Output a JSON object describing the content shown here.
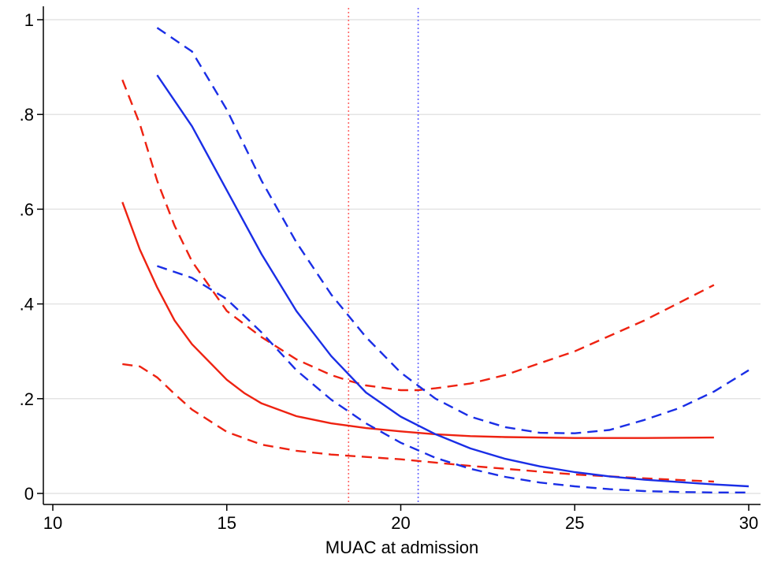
{
  "chart_data": {
    "type": "line",
    "title": "",
    "xlabel": "MUAC at admission",
    "ylabel": "",
    "xlim": [
      10,
      30
    ],
    "ylim": [
      0,
      1
    ],
    "grid": true,
    "legend": "none",
    "x_ticks": [
      {
        "value": 10,
        "label": "10"
      },
      {
        "value": 15,
        "label": "15"
      },
      {
        "value": 20,
        "label": "20"
      },
      {
        "value": 25,
        "label": "25"
      },
      {
        "value": 30,
        "label": "30"
      }
    ],
    "y_ticks": [
      {
        "value": 0,
        "label": "0"
      },
      {
        "value": 0.2,
        "label": ".2"
      },
      {
        "value": 0.4,
        "label": ".4"
      },
      {
        "value": 0.6,
        "label": ".6"
      },
      {
        "value": 0.8,
        "label": ".8"
      },
      {
        "value": 1,
        "label": "1"
      }
    ],
    "reference_lines": [
      {
        "x": 18.5,
        "color": "#ff6666",
        "style": "dotted"
      },
      {
        "x": 20.5,
        "color": "#6666ff",
        "style": "dotted"
      }
    ],
    "series": [
      {
        "color": "#ee2211",
        "style": "solid",
        "x": [
          12,
          12.5,
          13,
          13.5,
          14,
          15,
          15.5,
          16,
          17,
          18,
          19,
          20,
          21,
          22,
          23,
          25,
          27,
          29
        ],
        "y": [
          0.615,
          0.515,
          0.435,
          0.365,
          0.315,
          0.24,
          0.212,
          0.19,
          0.163,
          0.148,
          0.138,
          0.131,
          0.125,
          0.121,
          0.119,
          0.117,
          0.117,
          0.118
        ]
      },
      {
        "color": "#ee2211",
        "style": "dashed",
        "x": [
          12,
          12.5,
          13,
          13.5,
          14,
          15,
          16,
          17,
          18,
          18.5,
          19,
          20,
          20.5,
          21,
          22,
          23,
          25,
          27,
          29
        ],
        "y": [
          0.873,
          0.78,
          0.66,
          0.565,
          0.49,
          0.385,
          0.33,
          0.283,
          0.25,
          0.238,
          0.228,
          0.218,
          0.218,
          0.222,
          0.232,
          0.25,
          0.3,
          0.365,
          0.44
        ]
      },
      {
        "color": "#ee2211",
        "style": "dashed",
        "x": [
          12,
          12.5,
          13,
          13.5,
          14,
          15,
          16,
          17,
          18,
          19,
          20,
          22,
          25,
          27,
          29
        ],
        "y": [
          0.273,
          0.268,
          0.245,
          0.21,
          0.177,
          0.13,
          0.103,
          0.09,
          0.082,
          0.077,
          0.072,
          0.058,
          0.04,
          0.032,
          0.025
        ]
      },
      {
        "color": "#1a2ee6",
        "style": "solid",
        "x": [
          13,
          14,
          15,
          16,
          17,
          18,
          19,
          20,
          21,
          22,
          23,
          24,
          25,
          26,
          27,
          28,
          29,
          30
        ],
        "y": [
          0.883,
          0.775,
          0.64,
          0.505,
          0.385,
          0.29,
          0.213,
          0.162,
          0.125,
          0.095,
          0.073,
          0.057,
          0.045,
          0.036,
          0.029,
          0.024,
          0.019,
          0.015
        ]
      },
      {
        "color": "#1a2ee6",
        "style": "dashed",
        "x": [
          13,
          14,
          15,
          16,
          17,
          18,
          19,
          20,
          21,
          22,
          23,
          24,
          25,
          26,
          27,
          28,
          29,
          30
        ],
        "y": [
          0.983,
          0.933,
          0.81,
          0.66,
          0.53,
          0.42,
          0.33,
          0.255,
          0.2,
          0.162,
          0.14,
          0.128,
          0.127,
          0.134,
          0.155,
          0.18,
          0.215,
          0.26
        ]
      },
      {
        "color": "#1a2ee6",
        "style": "dashed",
        "x": [
          13,
          14,
          15,
          16,
          17,
          18,
          19,
          20,
          21,
          22,
          23,
          24,
          25,
          26,
          27,
          28,
          29,
          30
        ],
        "y": [
          0.48,
          0.455,
          0.41,
          0.34,
          0.26,
          0.198,
          0.148,
          0.107,
          0.075,
          0.052,
          0.035,
          0.023,
          0.015,
          0.009,
          0.005,
          0.003,
          0.002,
          0.002
        ]
      }
    ]
  }
}
